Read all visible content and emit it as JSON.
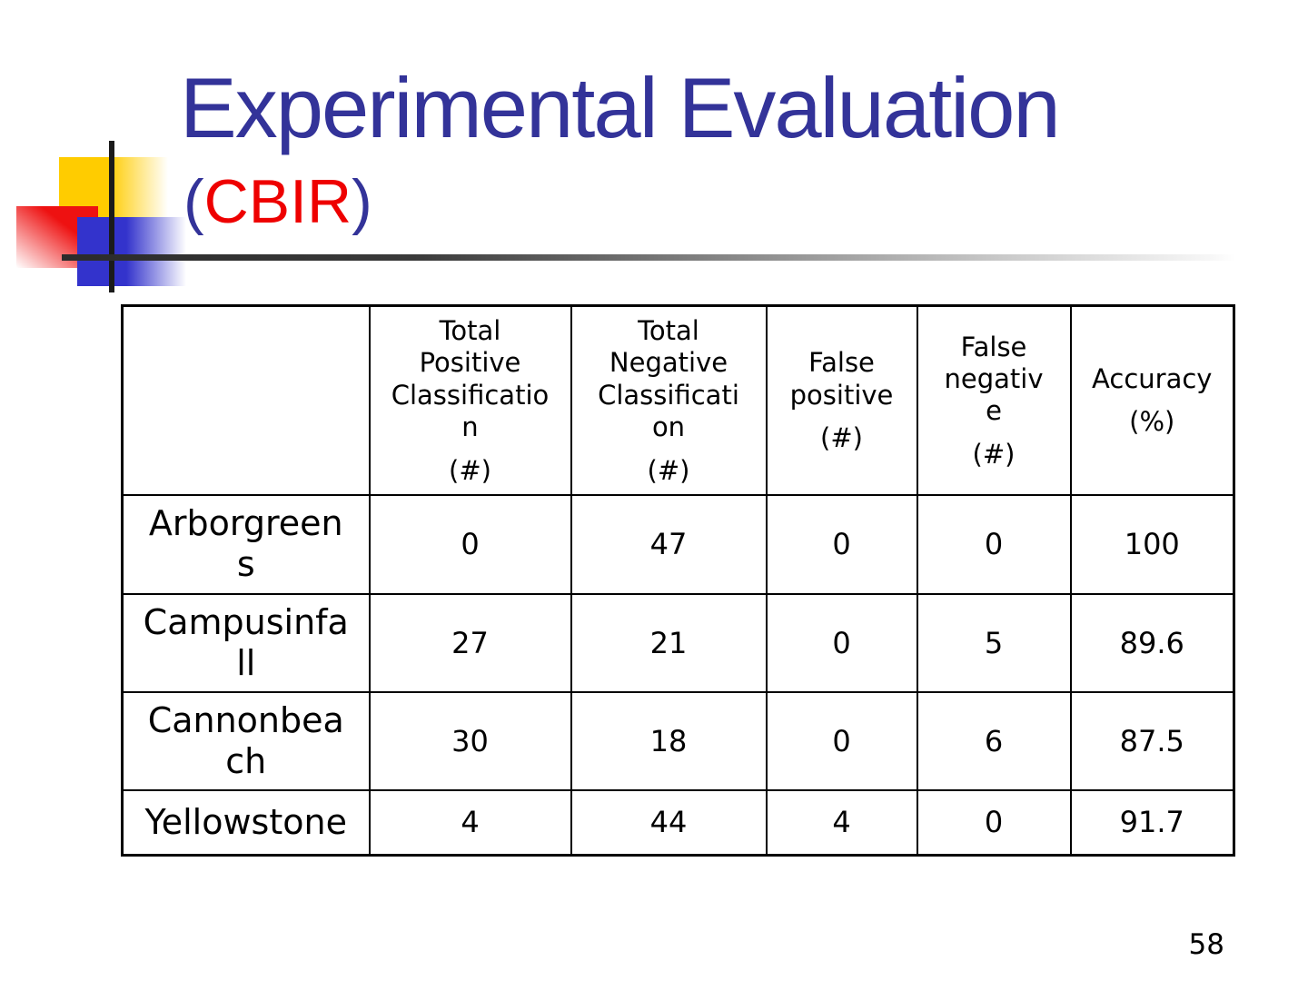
{
  "slide": {
    "title": "Experimental Evaluation",
    "subtitle_open": "(",
    "subtitle_text": "CBIR",
    "subtitle_close": ")",
    "page_number": "58"
  },
  "colors": {
    "title_blue": "#333399",
    "subtitle_red": "#ee0000",
    "logo_yellow": "#ffcc00",
    "logo_red": "#ee1111",
    "logo_blue": "#3333cc",
    "table_border": "#000000"
  },
  "icons": {
    "logo": "three-overlapping-squares-with-crosshair-lines"
  },
  "table": {
    "columns": [
      {
        "label": "",
        "unit": ""
      },
      {
        "label": "Total\nPositive\nClassificatio\nn",
        "unit": "(#)"
      },
      {
        "label": "Total\nNegative\nClassificati\non",
        "unit": "(#)"
      },
      {
        "label": "False\npositive",
        "unit": "(#)"
      },
      {
        "label": "False\nnegativ\ne",
        "unit": "(#)"
      },
      {
        "label": "Accuracy",
        "unit": "(%)"
      }
    ],
    "rows": [
      {
        "label": "Arborgreen\ns",
        "values": [
          "0",
          "47",
          "0",
          "0",
          "100"
        ]
      },
      {
        "label": "Campusinfa\nll",
        "values": [
          "27",
          "21",
          "0",
          "5",
          "89.6"
        ]
      },
      {
        "label": "Cannonbea\nch",
        "values": [
          "30",
          "18",
          "0",
          "6",
          "87.5"
        ]
      },
      {
        "label": "Yellowstone",
        "values": [
          "4",
          "44",
          "4",
          "0",
          "91.7"
        ]
      }
    ]
  }
}
